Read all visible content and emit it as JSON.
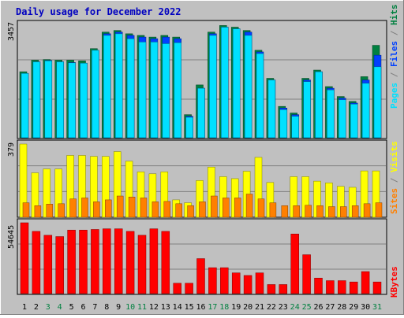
{
  "title": "Daily usage for December 2022",
  "colors": {
    "background": "#c0c0c0",
    "title": "#0000c0",
    "hits": "#008040",
    "files": "#0040ff",
    "pages": "#00e0ff",
    "visits": "#ffff00",
    "sites": "#ff8000",
    "kbytes": "#ff0000",
    "weekend_day": "#008040",
    "weekday": "#000000"
  },
  "chart_data": [
    {
      "type": "bar",
      "name": "hits-files-pages",
      "scale_label": "3457",
      "ylim": [
        0,
        3457
      ],
      "axis_label_parts": [
        "Pages",
        "Files",
        "Hits"
      ],
      "x": [
        1,
        2,
        3,
        4,
        5,
        6,
        7,
        8,
        9,
        10,
        11,
        12,
        13,
        14,
        15,
        16,
        17,
        18,
        19,
        20,
        21,
        22,
        23,
        24,
        25,
        26,
        27,
        28,
        29,
        30,
        31
      ],
      "series": [
        {
          "name": "Hits",
          "values": [
            2000,
            2350,
            2370,
            2350,
            2350,
            2330,
            2700,
            3200,
            3250,
            3150,
            3100,
            3050,
            3100,
            3050,
            700,
            1600,
            3200,
            3400,
            3350,
            3250,
            2650,
            1800,
            950,
            750,
            1800,
            2050,
            1550,
            1250,
            1100,
            1850,
            2800
          ]
        },
        {
          "name": "Files",
          "values": [
            1950,
            2300,
            2340,
            2300,
            2280,
            2260,
            2650,
            3150,
            3200,
            3100,
            3050,
            3000,
            3050,
            3000,
            650,
            1500,
            3150,
            3350,
            3300,
            3200,
            2600,
            1750,
            900,
            700,
            1750,
            2000,
            1500,
            1200,
            1050,
            1750,
            2500
          ]
        },
        {
          "name": "Pages",
          "values": [
            1950,
            2300,
            2330,
            2300,
            2270,
            2260,
            2650,
            3100,
            3150,
            3000,
            2900,
            2900,
            2850,
            2880,
            620,
            1500,
            3100,
            3350,
            3300,
            3100,
            2550,
            1750,
            850,
            650,
            1700,
            2000,
            1450,
            1150,
            1020,
            1650,
            2150
          ]
        }
      ],
      "weekend_days": [
        3,
        4,
        10,
        11,
        17,
        18,
        24,
        25,
        31
      ]
    },
    {
      "type": "bar",
      "name": "visits-sites",
      "scale_label": "379",
      "ylim": [
        0,
        379
      ],
      "axis_label_parts": [
        "Sites",
        "Visits"
      ],
      "series": [
        {
          "name": "Visits",
          "values": [
            379,
            230,
            250,
            250,
            320,
            320,
            315,
            315,
            340,
            290,
            235,
            225,
            235,
            90,
            75,
            190,
            260,
            210,
            200,
            238,
            310,
            180,
            0,
            210,
            210,
            187,
            178,
            160,
            155,
            240,
            240
          ]
        },
        {
          "name": "Sites",
          "values": [
            75,
            60,
            68,
            70,
            95,
            100,
            80,
            90,
            110,
            105,
            100,
            80,
            82,
            70,
            60,
            80,
            110,
            100,
            100,
            120,
            95,
            75,
            60,
            60,
            62,
            60,
            55,
            55,
            60,
            70,
            75
          ]
        }
      ]
    },
    {
      "type": "bar",
      "name": "kbytes",
      "scale_label": "54645",
      "ylim": [
        0,
        54645
      ],
      "axis_label": "KBytes",
      "series": [
        {
          "name": "KBytes",
          "values": [
            54645,
            48000,
            45000,
            44000,
            49000,
            49000,
            49500,
            50000,
            50000,
            48000,
            45000,
            50000,
            48000,
            8000,
            8000,
            27000,
            20000,
            20000,
            16000,
            14000,
            16000,
            7000,
            7000,
            46000,
            30000,
            12000,
            10000,
            10000,
            9000,
            17000,
            9000
          ]
        }
      ]
    }
  ]
}
